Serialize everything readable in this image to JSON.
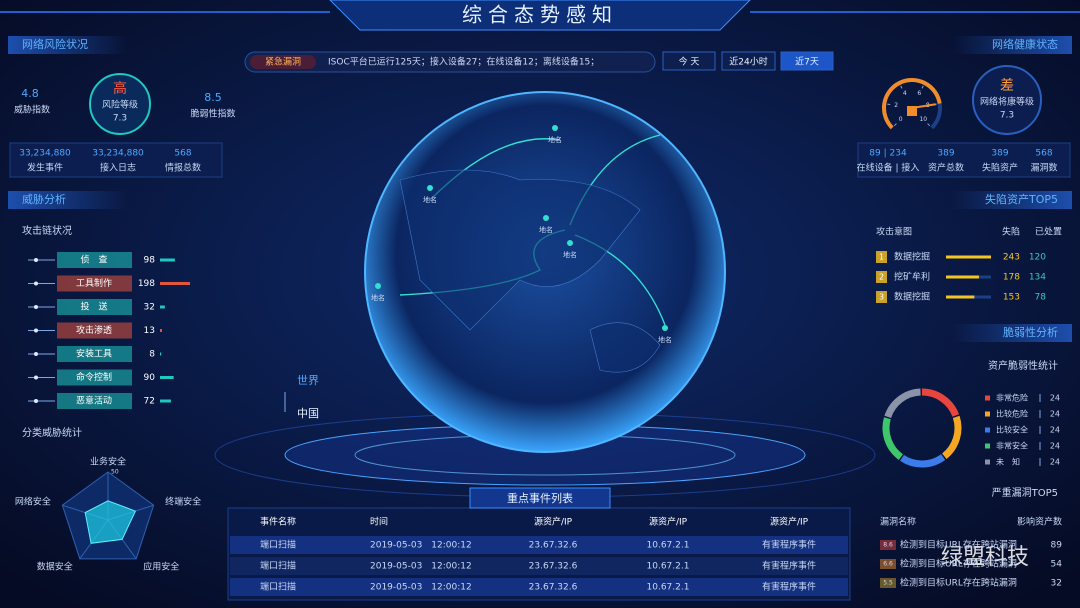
{
  "header": {
    "title": "综合态势感知"
  },
  "risk": {
    "title": "网络风险状况",
    "threat": {
      "value": 4.8,
      "label": "威胁指数"
    },
    "level": {
      "grade": "高",
      "label": "风险等级",
      "value": 7.3
    },
    "vuln": {
      "value": 8.5,
      "label": "脆弱性指数"
    },
    "stats": [
      {
        "value": "33,234,880",
        "label": "发生事件"
      },
      {
        "value": "33,234,880",
        "label": "接入日志"
      },
      {
        "value": 568,
        "label": "情报总数"
      }
    ]
  },
  "threat": {
    "title": "威胁分析",
    "chain": {
      "title": "攻击链状况",
      "items": [
        {
          "name": "侦　查",
          "value": 98,
          "color": "#1fc8c0"
        },
        {
          "name": "工具制作",
          "value": 198,
          "color": "#e2553c"
        },
        {
          "name": "投　送",
          "value": 32,
          "color": "#1fc8c0"
        },
        {
          "name": "攻击渗透",
          "value": 13,
          "color": "#e2553c"
        },
        {
          "name": "安装工具",
          "value": 8,
          "color": "#1fc8c0"
        },
        {
          "name": "命令控制",
          "value": 90,
          "color": "#1fc8c0"
        },
        {
          "name": "恶意活动",
          "value": 72,
          "color": "#1fc8c0"
        }
      ]
    },
    "category": {
      "title": "分类威胁统计",
      "axes": [
        "业务安全",
        "终端安全",
        "应用安全",
        "数据安全",
        "网络安全"
      ],
      "values": [
        20,
        30,
        25,
        30,
        25
      ],
      "ticks": [
        0,
        10,
        20,
        30,
        40,
        50
      ]
    }
  },
  "alert": {
    "badge": "紧急漏洞",
    "text": "ISOC平台已运行125天；接入设备27；在线设备12；离线设备15；",
    "buttons": [
      "今 天",
      "近24小时",
      "近7天"
    ]
  },
  "globe": {
    "places": [
      "地名",
      "地名",
      "地名",
      "地名",
      "地名",
      "地名"
    ],
    "legend": [
      "世界",
      "中国"
    ]
  },
  "events": {
    "title": "重点事件列表",
    "columns": [
      "事件名称",
      "时间",
      "源资产/IP",
      "源资产/IP",
      "源资产/IP"
    ],
    "rows": [
      [
        "端口扫描",
        "2019-05-03　12:00:12",
        "23.67.32.6",
        "10.67.2.1",
        "有害程序事件"
      ],
      [
        "端口扫描",
        "2019-05-03　12:00:12",
        "23.67.32.6",
        "10.67.2.1",
        "有害程序事件"
      ],
      [
        "端口扫描",
        "2019-05-03　12:00:12",
        "23.67.32.6",
        "10.67.2.1",
        "有害程序事件"
      ]
    ]
  },
  "health": {
    "title": "网络健康状态",
    "gauge": {
      "ticks": [
        0,
        2,
        4,
        6,
        8,
        10
      ],
      "value": 8
    },
    "grade": "差",
    "label": "网络将康等级",
    "value": 7.3,
    "stats": [
      {
        "value": "89 | 234",
        "label": "在线设备 | 接入"
      },
      {
        "value": 389,
        "label": "资产总数"
      },
      {
        "value": 389,
        "label": "失陷资产"
      },
      {
        "value": 568,
        "label": "漏洞数"
      }
    ]
  },
  "compromised": {
    "title": "失陷资产TOP5",
    "columns": [
      "攻击意图",
      "失陷",
      "已处置"
    ],
    "rows": [
      {
        "rank": 1,
        "name": "数据挖掘",
        "lost": 243,
        "handled": 120
      },
      {
        "rank": 2,
        "name": "挖矿牟利",
        "lost": 178,
        "handled": 134
      },
      {
        "rank": 3,
        "name": "数据挖掘",
        "lost": 153,
        "handled": 78
      }
    ]
  },
  "vulnerability": {
    "title": "脆弱性分析",
    "stats": {
      "title": "资产脆弱性统计",
      "items": [
        {
          "name": "非常危险",
          "value": 24,
          "color": "#e8453c"
        },
        {
          "name": "比较危险",
          "value": 24,
          "color": "#f5a623"
        },
        {
          "name": "比较安全",
          "value": 24,
          "color": "#3b7bea"
        },
        {
          "name": "非常安全",
          "value": 24,
          "color": "#3ec76a"
        },
        {
          "name": "未　知",
          "value": 24,
          "color": "#8a93a8"
        }
      ]
    }
  },
  "top_vulns": {
    "title": "严重漏洞TOP5",
    "columns": [
      "漏洞名称",
      "影响资产数"
    ],
    "rows": [
      {
        "score": "8.6",
        "name": "检测到目标URL存在跨站漏洞",
        "count": 89
      },
      {
        "score": "6.6",
        "name": "检测到目标URL存在跨站漏洞",
        "count": 54
      },
      {
        "score": "5.5",
        "name": "检测到目标URL存在跨站漏洞",
        "count": 32
      }
    ]
  },
  "watermark": "绿盟科技"
}
